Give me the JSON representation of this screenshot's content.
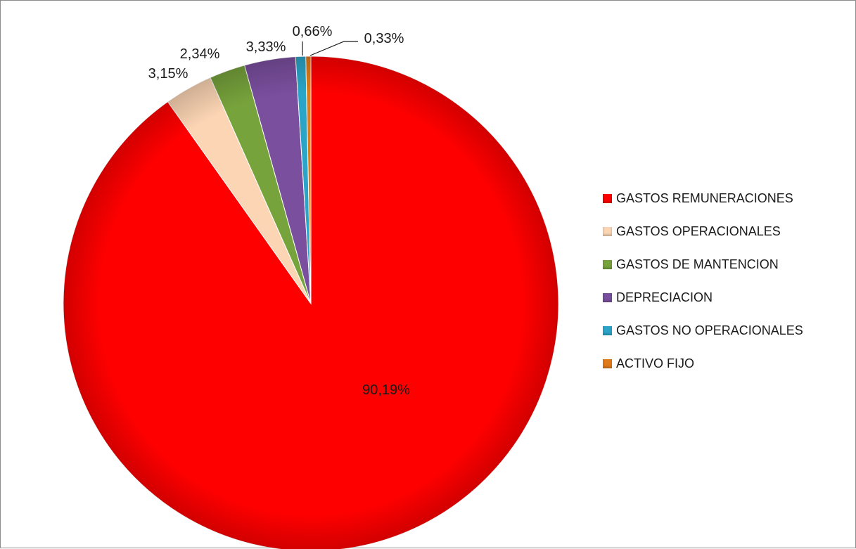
{
  "chart_data": {
    "type": "pie",
    "title": "",
    "legend_position": "right",
    "categories": [
      "GASTOS REMUNERACIONES",
      "GASTOS OPERACIONALES",
      "GASTOS DE MANTENCION",
      "DEPRECIACION",
      "GASTOS NO OPERACIONALES",
      "ACTIVO FIJO"
    ],
    "values": [
      90.19,
      3.15,
      2.34,
      3.33,
      0.66,
      0.33
    ],
    "data_labels": [
      "90,19%",
      "3,15%",
      "2,34%",
      "3,33%",
      "0,66%",
      "0,33%"
    ],
    "colors": [
      "#ff0000",
      "#fcd5b4",
      "#77a33c",
      "#7a4f9e",
      "#2aa5c8",
      "#e07b1a"
    ]
  }
}
